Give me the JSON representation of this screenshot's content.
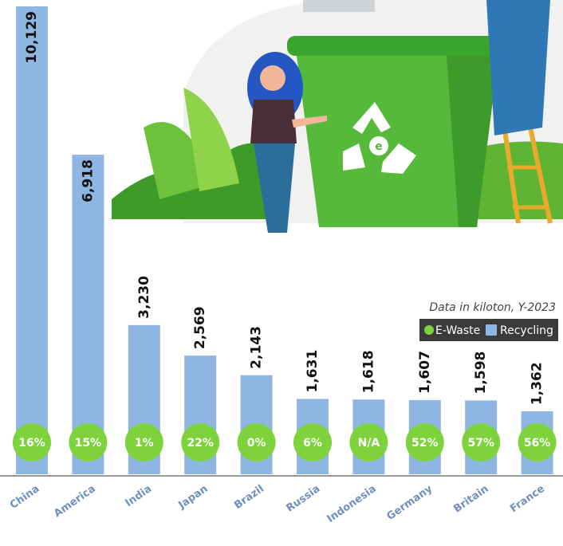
{
  "chart_data": {
    "type": "bar",
    "subtitle": "Data in kiloton, Y-2023",
    "categories": [
      "China",
      "America",
      "India",
      "Japan",
      "Brazil",
      "Russia",
      "Indonesia",
      "Germany",
      "Britain",
      "France"
    ],
    "series": [
      {
        "name": "Recycling",
        "color": "#8fb6e3",
        "values": [
          10129,
          6918,
          3230,
          2569,
          2143,
          1631,
          1618,
          1607,
          1598,
          1362
        ],
        "value_labels": [
          "10,129",
          "6,918",
          "3,230",
          "2,569",
          "2,143",
          "1,631",
          "1,618",
          "1,607",
          "1,598",
          "1,362"
        ]
      },
      {
        "name": "E-Waste",
        "color": "#7ed23c",
        "values": [
          16,
          15,
          1,
          22,
          0,
          6,
          null,
          52,
          57,
          56
        ],
        "value_labels": [
          "16%",
          "15%",
          "1%",
          "22%",
          "0%",
          "6%",
          "N/A",
          "52%",
          "57%",
          "56%"
        ]
      }
    ]
  }
}
